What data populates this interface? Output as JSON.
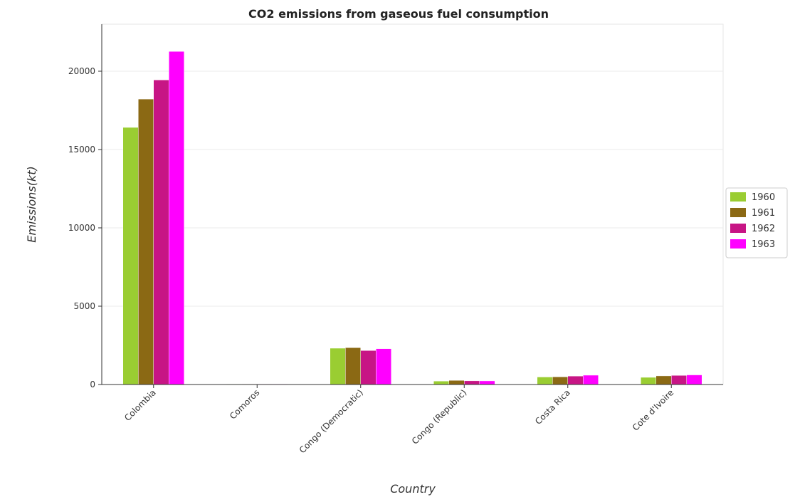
{
  "chart_data": {
    "type": "bar",
    "title": "CO2 emissions from gaseous fuel consumption",
    "xlabel": "Country",
    "ylabel": "Emissions(kt)",
    "ylim": [
      0,
      23000
    ],
    "yticks": [
      0,
      5000,
      10000,
      15000,
      20000
    ],
    "ytick_labels": [
      "0",
      "5000",
      "10000",
      "15000",
      "20000"
    ],
    "categories": [
      "Colombia",
      "Comoros",
      "Congo (Democratic)",
      "Congo (Republic)",
      "Costa Rica",
      "Cote d'Ivoire"
    ],
    "series": [
      {
        "name": "1960",
        "color": "#9acd32",
        "values": [
          16412,
          7,
          2318,
          220,
          480,
          458
        ]
      },
      {
        "name": "1961",
        "color": "#8b6914",
        "values": [
          18222,
          7,
          2354,
          264,
          492,
          550
        ]
      },
      {
        "name": "1962",
        "color": "#c71585",
        "values": [
          19443,
          7,
          2171,
          235,
          539,
          582
        ]
      },
      {
        "name": "1963",
        "color": "#ff00ff",
        "values": [
          21264,
          7,
          2288,
          231,
          594,
          612
        ]
      }
    ],
    "legend_position": "right"
  }
}
